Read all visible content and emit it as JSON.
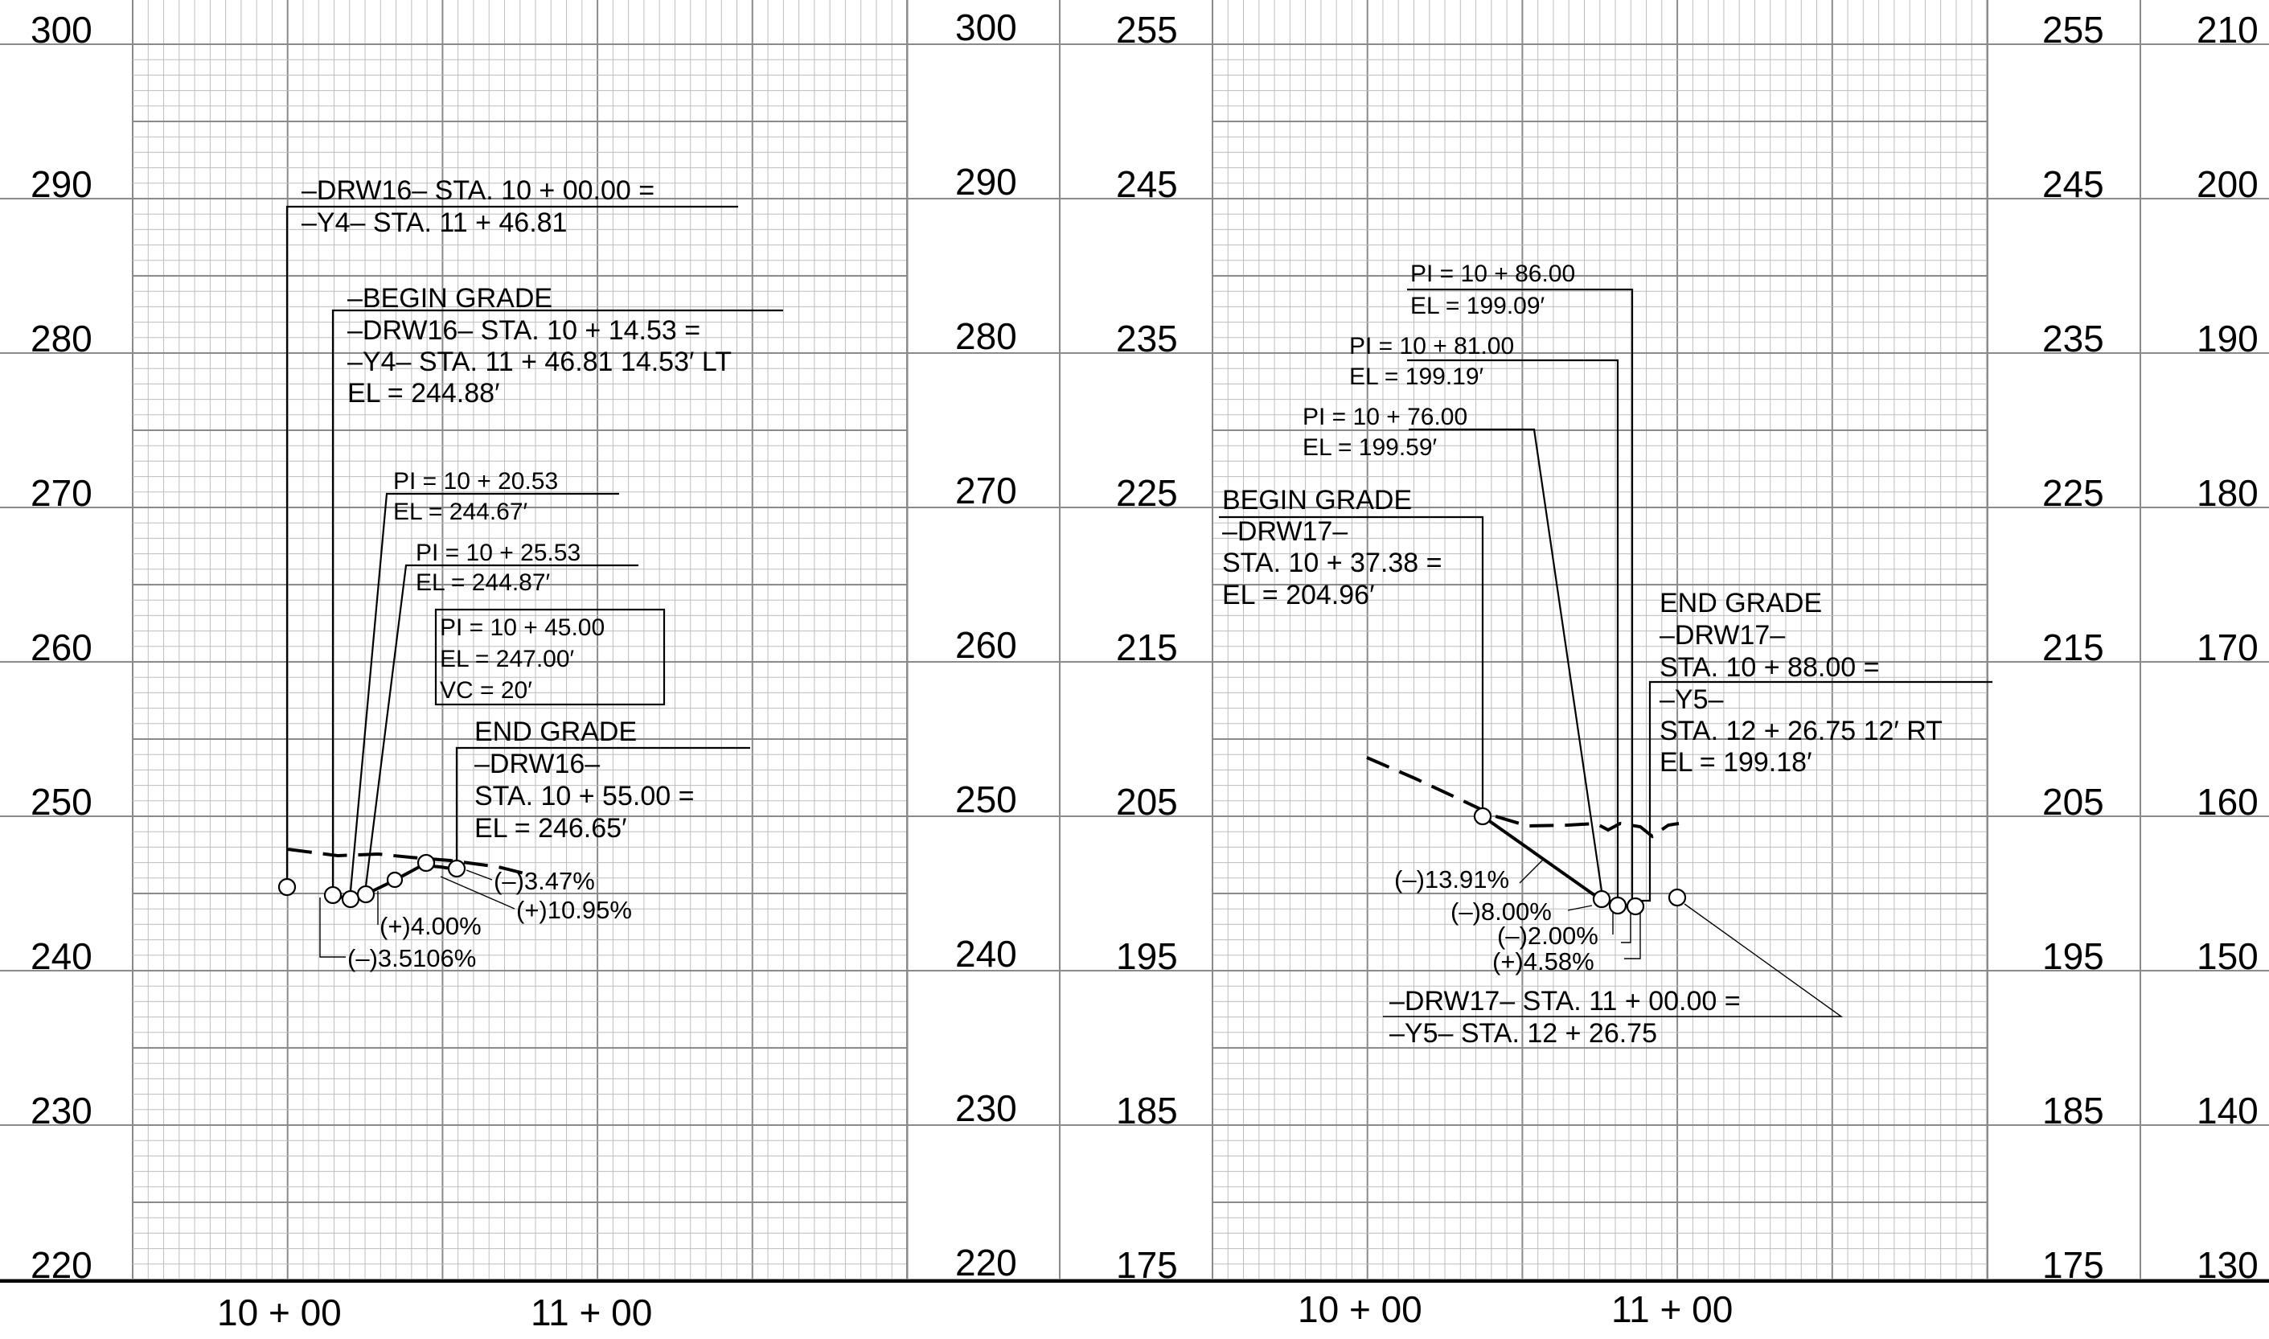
{
  "colors": {
    "background": "#ffffff",
    "ink": "#000000",
    "grid_minor": "#bdbdbd",
    "grid_major": "#8a8a8a"
  },
  "panel1": {
    "left_axis_ticks": [
      "300",
      "290",
      "280",
      "270",
      "260",
      "250",
      "240",
      "230",
      "220"
    ],
    "right_axis_ticks": [
      "300",
      "290",
      "280",
      "270",
      "260",
      "250",
      "240",
      "230",
      "220"
    ],
    "stations": [
      "10 + 00",
      "11 + 00"
    ],
    "labels": {
      "tie_line1": "–DRW16–  STA. 10 + 00.00  =",
      "tie_line2": "–Y4–  STA. 11 + 46.81",
      "begin_title": "–BEGIN  GRADE",
      "begin_line1": "–DRW16–  STA. 10 + 14.53  =",
      "begin_line2": "–Y4–  STA. 11 + 46.81  14.53′ LT",
      "begin_el": "EL  =    244.88′",
      "pi1_sta": "PI  =    10 + 20.53",
      "pi1_el": "EL  =    244.67′",
      "pi2_sta": "PI  =    10 + 25.53",
      "pi2_el": "EL  =    244.87′",
      "pi3_sta": "PI  =    10 + 45.00",
      "pi3_el": "EL  =    247.00′",
      "pi3_vc": "VC  =    20′",
      "end_title": "END  GRADE",
      "end_line1": "–DRW16–",
      "end_line2": "STA. 10 + 55.00   =",
      "end_el": "EL  =    246.65′",
      "g1": "(–)3.47%",
      "g2": "(+)10.95%",
      "g3": "(+)4.00%",
      "g4": "(–)3.5106%"
    }
  },
  "panel2": {
    "left_axis_ticks": [
      "255",
      "245",
      "235",
      "225",
      "215",
      "205",
      "195",
      "185",
      "175"
    ],
    "right_axis_ticks": [
      "255",
      "245",
      "235",
      "225",
      "215",
      "205",
      "195",
      "185",
      "175"
    ],
    "far_right_axis_ticks": [
      "210",
      "200",
      "190",
      "180",
      "170",
      "160",
      "150",
      "140",
      "130"
    ],
    "stations": [
      "10 + 00",
      "11 + 00"
    ],
    "labels": {
      "pi3_sta": "PI  =    10 + 86.00",
      "pi3_el": "EL  =    199.09′",
      "pi2_sta": "PI  =    10 + 81.00",
      "pi2_el": "EL  =    199.19′",
      "pi1_sta": "PI  =    10 + 76.00",
      "pi1_el": "EL  =    199.59′",
      "begin_title": "BEGIN  GRADE",
      "begin_line1": "–DRW17–",
      "begin_line2": "STA. 10 + 37.38 =",
      "begin_el": "EL  =    204.96′",
      "end_title": "END  GRADE",
      "end_line1": "–DRW17–",
      "end_line2": "STA. 10 + 88.00   =",
      "end_line3": "–Y5–",
      "end_line4": "STA. 12 + 26.75   12′ RT",
      "end_el": "EL  =    199.18′",
      "g1": "(–)13.91%",
      "g2": "(–)8.00%",
      "g3": "(–)2.00%",
      "g4": "(+)4.58%",
      "tie_line1": "–DRW17–  STA. 11 + 00.00   =",
      "tie_line2": "–Y5–  STA. 12 + 26.75"
    }
  }
}
